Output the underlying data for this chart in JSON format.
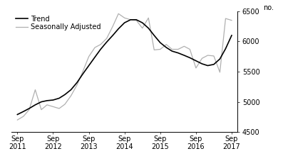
{
  "ylabel": "no.",
  "ylim": [
    4500,
    6500
  ],
  "yticks": [
    4500,
    5000,
    5500,
    6000,
    6500
  ],
  "xlim_start": 2011.58,
  "xlim_end": 2017.92,
  "xtick_labels": [
    "Sep\n2011",
    "Sep\n2012",
    "Sep\n2013",
    "Sep\n2014",
    "Sep\n2015",
    "Sep\n2016",
    "Sep\n2017"
  ],
  "xtick_positions": [
    2011.75,
    2012.75,
    2013.75,
    2014.75,
    2015.75,
    2016.75,
    2017.75
  ],
  "legend_entries": [
    "Trend",
    "Seasonally Adjusted"
  ],
  "trend_color": "#000000",
  "seasonal_color": "#b0b0b0",
  "background_color": "#ffffff",
  "trend_lw": 1.2,
  "seasonal_lw": 0.9,
  "trend_data": {
    "x": [
      2011.75,
      2011.92,
      2012.08,
      2012.25,
      2012.42,
      2012.58,
      2012.75,
      2012.92,
      2013.08,
      2013.25,
      2013.42,
      2013.58,
      2013.75,
      2013.92,
      2014.08,
      2014.25,
      2014.42,
      2014.58,
      2014.75,
      2014.92,
      2015.08,
      2015.25,
      2015.42,
      2015.58,
      2015.75,
      2015.92,
      2016.08,
      2016.25,
      2016.42,
      2016.58,
      2016.75,
      2016.92,
      2017.08,
      2017.25,
      2017.42,
      2017.58,
      2017.75
    ],
    "y": [
      4790,
      4840,
      4890,
      4950,
      5000,
      5020,
      5030,
      5060,
      5120,
      5200,
      5320,
      5460,
      5600,
      5740,
      5870,
      5990,
      6100,
      6210,
      6310,
      6360,
      6360,
      6310,
      6220,
      6100,
      5980,
      5900,
      5840,
      5810,
      5770,
      5730,
      5680,
      5630,
      5600,
      5620,
      5710,
      5880,
      6100
    ]
  },
  "seasonal_data": {
    "x": [
      2011.75,
      2011.92,
      2012.08,
      2012.25,
      2012.42,
      2012.58,
      2012.75,
      2012.92,
      2013.08,
      2013.25,
      2013.42,
      2013.58,
      2013.75,
      2013.92,
      2014.08,
      2014.25,
      2014.42,
      2014.58,
      2014.75,
      2014.92,
      2015.08,
      2015.25,
      2015.42,
      2015.58,
      2015.75,
      2015.92,
      2016.08,
      2016.25,
      2016.42,
      2016.58,
      2016.75,
      2016.92,
      2017.08,
      2017.25,
      2017.42,
      2017.58,
      2017.75
    ],
    "y": [
      4700,
      4760,
      4870,
      5200,
      4870,
      4950,
      4920,
      4890,
      4960,
      5100,
      5280,
      5500,
      5750,
      5900,
      5950,
      6050,
      6250,
      6460,
      6390,
      6360,
      6350,
      6220,
      6390,
      5860,
      5870,
      5950,
      5870,
      5870,
      5920,
      5870,
      5560,
      5720,
      5770,
      5760,
      5490,
      6380,
      6350
    ]
  }
}
